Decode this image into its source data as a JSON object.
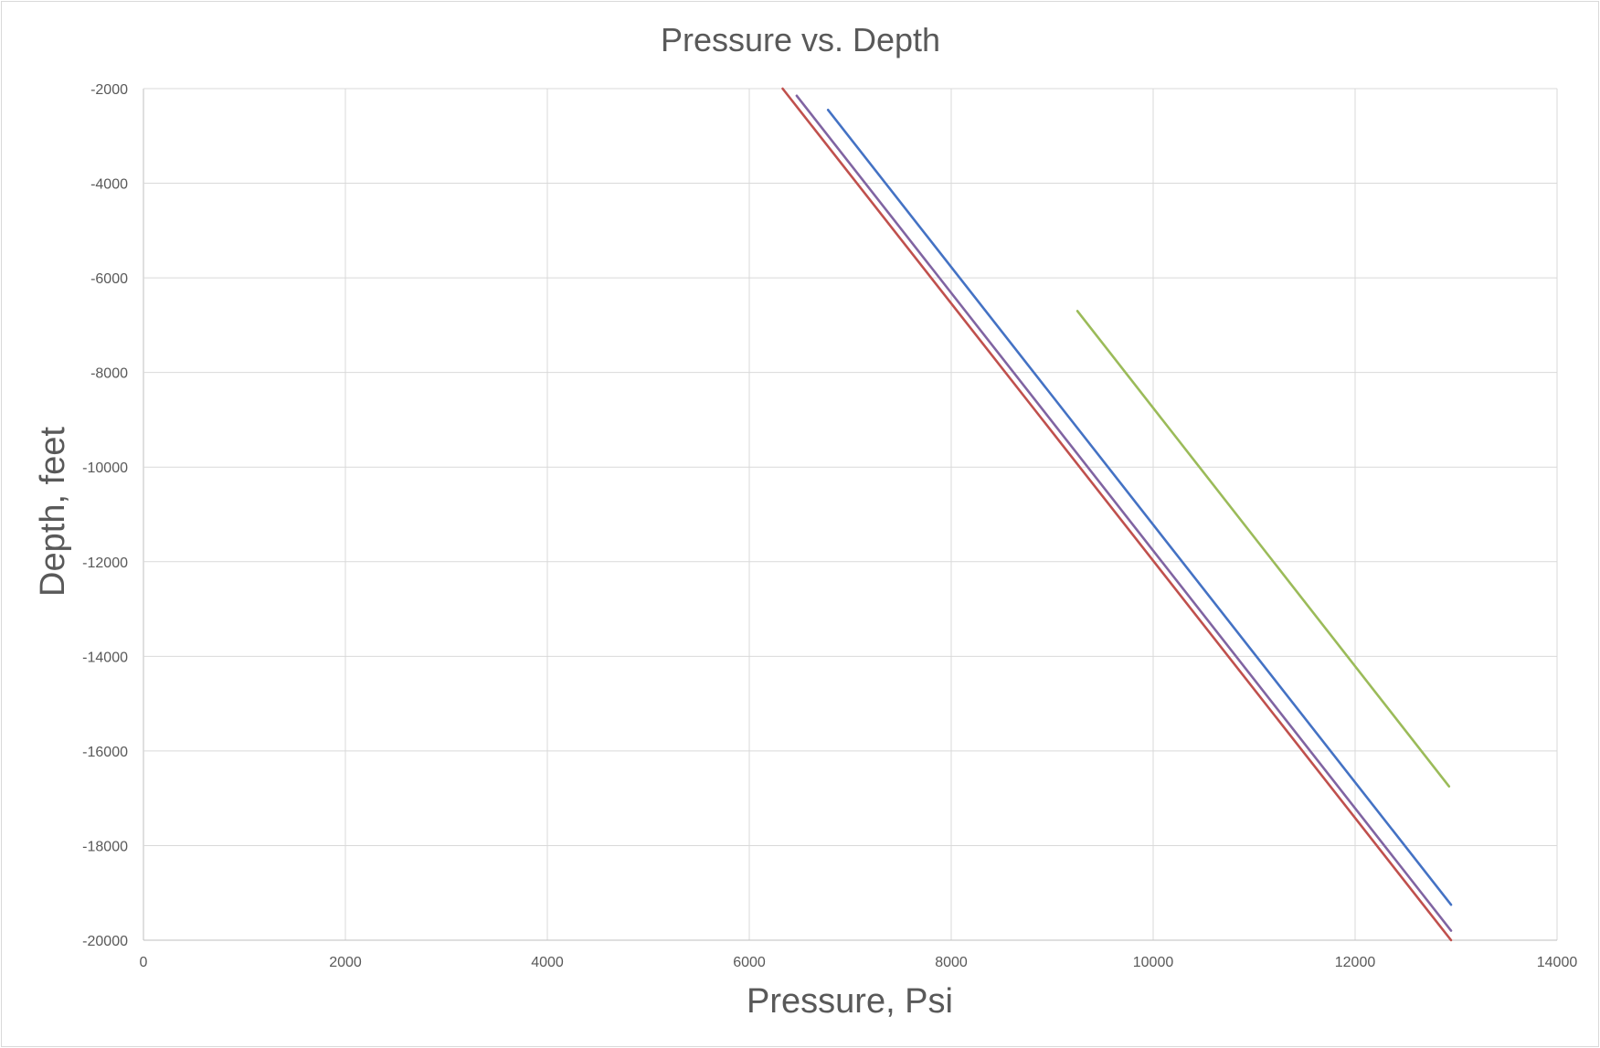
{
  "chart_data": {
    "type": "line",
    "title": "Pressure vs. Depth",
    "xlabel": "Pressure, Psi",
    "ylabel": "Depth, feet",
    "xlim": [
      0,
      14000
    ],
    "ylim": [
      -20000,
      -2000
    ],
    "x_ticks": [
      0,
      2000,
      4000,
      6000,
      8000,
      10000,
      12000,
      14000
    ],
    "y_ticks": [
      -2000,
      -4000,
      -6000,
      -8000,
      -10000,
      -12000,
      -14000,
      -16000,
      -18000,
      -20000
    ],
    "grid": true,
    "legend": "none",
    "series": [
      {
        "color": "#4472c4",
        "x": [
          6780,
          12950
        ],
        "y": [
          -2450,
          -19250
        ]
      },
      {
        "color": "#c0504d",
        "x": [
          6330,
          12950
        ],
        "y": [
          -2000,
          -20000
        ]
      },
      {
        "color": "#8064a2",
        "x": [
          6470,
          12950
        ],
        "y": [
          -2150,
          -19800
        ]
      },
      {
        "color": "#9bbb59",
        "x": [
          9250,
          12930
        ],
        "y": [
          -6700,
          -16750
        ]
      }
    ]
  }
}
